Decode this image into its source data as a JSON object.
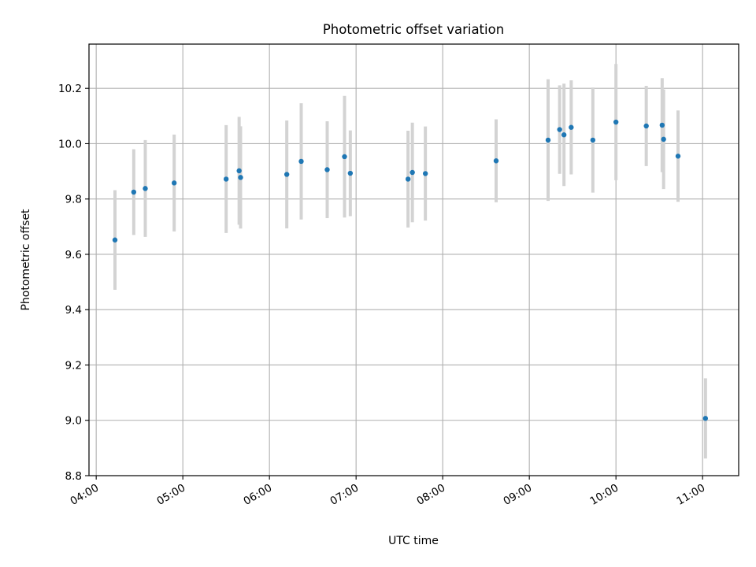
{
  "chart_data": {
    "type": "scatter",
    "title": "Photometric offset variation",
    "xlabel": "UTC time",
    "ylabel": "Photometric offset",
    "grid": true,
    "x_axis_type": "time",
    "xlim": [
      "03:55",
      "11:25"
    ],
    "ylim": [
      8.8,
      10.36
    ],
    "x_ticks": [
      "04:00",
      "05:00",
      "06:00",
      "07:00",
      "08:00",
      "09:00",
      "10:00",
      "11:00"
    ],
    "y_ticks": [
      "8.8",
      "9.0",
      "9.2",
      "9.4",
      "9.6",
      "9.8",
      "10.0",
      "10.2"
    ],
    "colors": {
      "points": "#1f77b4",
      "error_bars": "#d3d3d3",
      "grid": "#b0b0b0",
      "axes": "#000000"
    },
    "series": [
      {
        "x": [
          "04:13",
          "04:26",
          "04:34",
          "04:54",
          "05:30",
          "05:39",
          "05:40",
          "06:12",
          "06:22",
          "06:40",
          "06:52",
          "06:56",
          "07:36",
          "07:39",
          "07:48",
          "08:37",
          "09:13",
          "09:21",
          "09:24",
          "09:29",
          "09:44",
          "10:00",
          "10:21",
          "10:32",
          "10:33",
          "10:43",
          "11:02"
        ],
        "y": [
          9.652,
          9.825,
          9.838,
          9.858,
          9.872,
          9.902,
          9.878,
          9.889,
          9.936,
          9.906,
          9.953,
          9.893,
          9.872,
          9.896,
          9.892,
          9.938,
          10.013,
          10.051,
          10.032,
          10.059,
          10.013,
          10.078,
          10.064,
          10.067,
          10.016,
          9.955,
          9.007
        ],
        "yerr": [
          0.18,
          0.155,
          0.175,
          0.175,
          0.195,
          0.195,
          0.185,
          0.195,
          0.21,
          0.175,
          0.22,
          0.155,
          0.175,
          0.18,
          0.17,
          0.15,
          0.22,
          0.16,
          0.185,
          0.17,
          0.19,
          0.21,
          0.145,
          0.17,
          0.18,
          0.165,
          0.145
        ]
      }
    ]
  }
}
